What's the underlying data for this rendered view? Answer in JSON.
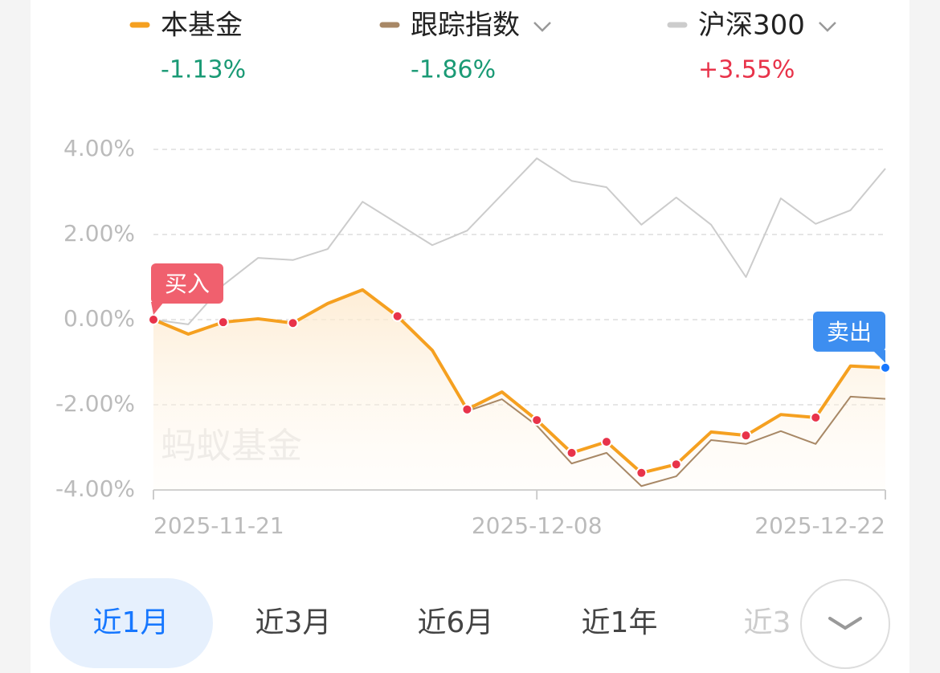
{
  "chart_data": {
    "type": "line",
    "categories": [
      "2025-11-21",
      null,
      null,
      null,
      null,
      null,
      null,
      null,
      null,
      null,
      null,
      "2025-12-08",
      null,
      null,
      null,
      null,
      null,
      null,
      null,
      null,
      null,
      "2025-12-22"
    ],
    "series": [
      {
        "name": "本基金",
        "color": "#f5a020",
        "change": -1.13,
        "change_label": "-1.13%",
        "change_color": "#1a9a75",
        "dropdown": false,
        "values": [
          0,
          -0.34,
          -0.06,
          0.02,
          -0.08,
          0.38,
          0.7,
          0.08,
          -0.72,
          -2.11,
          -1.7,
          -2.36,
          -3.13,
          -2.87,
          -3.6,
          -3.4,
          -2.64,
          -2.72,
          -2.23,
          -2.3,
          -1.09,
          -1.13
        ]
      },
      {
        "name": "跟踪指数",
        "color": "#a88866",
        "change": -1.86,
        "change_label": "-1.86%",
        "change_color": "#1a9a75",
        "dropdown": true,
        "values": [
          0,
          -0.34,
          -0.06,
          0.02,
          -0.08,
          0.38,
          0.7,
          0.08,
          -0.72,
          -2.15,
          -1.87,
          -2.49,
          -3.38,
          -3.13,
          -3.91,
          -3.68,
          -2.83,
          -2.92,
          -2.62,
          -2.92,
          -1.81,
          -1.86
        ]
      },
      {
        "name": "沪深300",
        "color": "#cccccc",
        "change": 3.55,
        "change_label": "+3.55%",
        "change_color": "#e8334a",
        "dropdown": true,
        "values": [
          0,
          -0.11,
          0.81,
          1.45,
          1.4,
          1.66,
          2.77,
          2.26,
          1.75,
          2.09,
          2.94,
          3.79,
          3.26,
          3.11,
          2.23,
          2.87,
          2.23,
          1.0,
          2.85,
          2.25,
          2.57,
          3.55
        ]
      }
    ],
    "ylim": [
      -4,
      4
    ],
    "yticks": [
      {
        "value": 4,
        "label": "4.00%"
      },
      {
        "value": 2,
        "label": "2.00%"
      },
      {
        "value": 0,
        "label": "0.00%"
      },
      {
        "value": -2,
        "label": "-2.00%"
      },
      {
        "value": -4,
        "label": "-4.00%"
      }
    ],
    "grid": true,
    "dots": [
      0,
      2,
      4,
      7,
      9,
      11,
      12,
      13,
      14,
      15,
      17,
      19
    ],
    "buy": {
      "label": "买入",
      "index": 0,
      "color": "#f0606e"
    },
    "sell": {
      "label": "卖出",
      "index": 21,
      "color": "#3d8ef0"
    },
    "watermark": "蚂蚁基金"
  },
  "tabs": [
    "近1月",
    "近3月",
    "近6月",
    "近1年",
    "近3"
  ],
  "selected_tab": 0
}
